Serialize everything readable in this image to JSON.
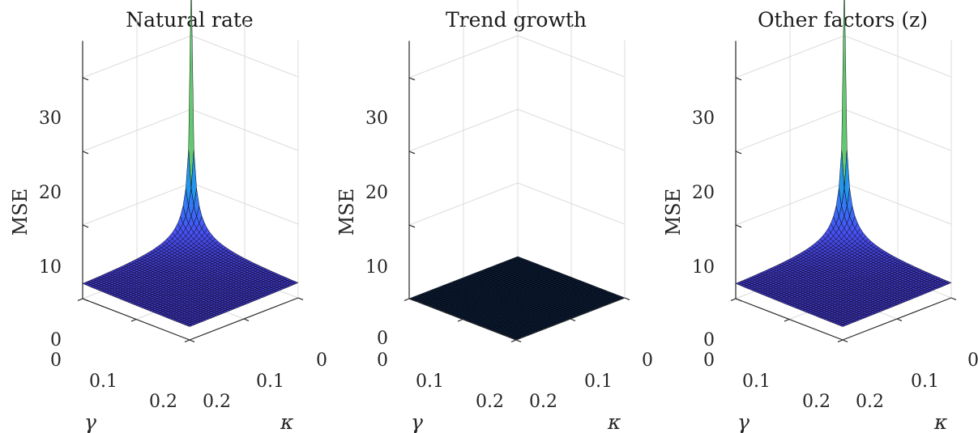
{
  "chart_data": [
    {
      "type": "surface",
      "title": "Natural rate",
      "zlabel": "MSE",
      "xlabel": "γ",
      "ylabel": "κ",
      "gamma_ticks": [
        "0",
        "0.1",
        "0.2"
      ],
      "kappa_ticks": [
        "0",
        "0.1",
        "0.2"
      ],
      "z_ticks": [
        "0",
        "10",
        "20",
        "30"
      ],
      "gamma_range": [
        0,
        0.2
      ],
      "kappa_range": [
        0,
        0.2
      ],
      "zlim": [
        0,
        35
      ],
      "grid": true,
      "colormap": "parula",
      "surface": {
        "max_at_origin": 38,
        "corner_value": 1.8,
        "edge_value_at_far_end": 2.2,
        "shape": "sharp peak at γ=0, κ=0, decaying roughly as 1/(γ+κ)"
      }
    },
    {
      "type": "surface",
      "title": "Trend growth",
      "zlabel": "MSE",
      "xlabel": "γ",
      "ylabel": "κ",
      "gamma_ticks": [
        "0",
        "0.1",
        "0.2"
      ],
      "kappa_ticks": [
        "0",
        "0.1",
        "0.2"
      ],
      "z_ticks": [
        "0",
        "10",
        "20",
        "30"
      ],
      "gamma_range": [
        0,
        0.2
      ],
      "kappa_range": [
        0,
        0.2
      ],
      "zlim": [
        0,
        35
      ],
      "grid": true,
      "colormap": "parula",
      "surface": {
        "max_at_origin": 0.0,
        "corner_value": 0.0,
        "edge_value_at_far_end": 0.0,
        "shape": "flat, approximately zero everywhere"
      }
    },
    {
      "type": "surface",
      "title": "Other factors (z)",
      "zlabel": "MSE",
      "xlabel": "γ",
      "ylabel": "κ",
      "gamma_ticks": [
        "0",
        "0.1",
        "0.2"
      ],
      "kappa_ticks": [
        "0",
        "0.1",
        "0.2"
      ],
      "z_ticks": [
        "0",
        "10",
        "20",
        "30"
      ],
      "gamma_range": [
        0,
        0.2
      ],
      "kappa_range": [
        0,
        0.2
      ],
      "zlim": [
        0,
        35
      ],
      "grid": true,
      "colormap": "parula",
      "surface": {
        "max_at_origin": 38,
        "corner_value": 1.8,
        "edge_value_at_far_end": 2.2,
        "shape": "sharp peak at γ=0, κ=0, decaying roughly as 1/(γ+κ)"
      }
    }
  ]
}
